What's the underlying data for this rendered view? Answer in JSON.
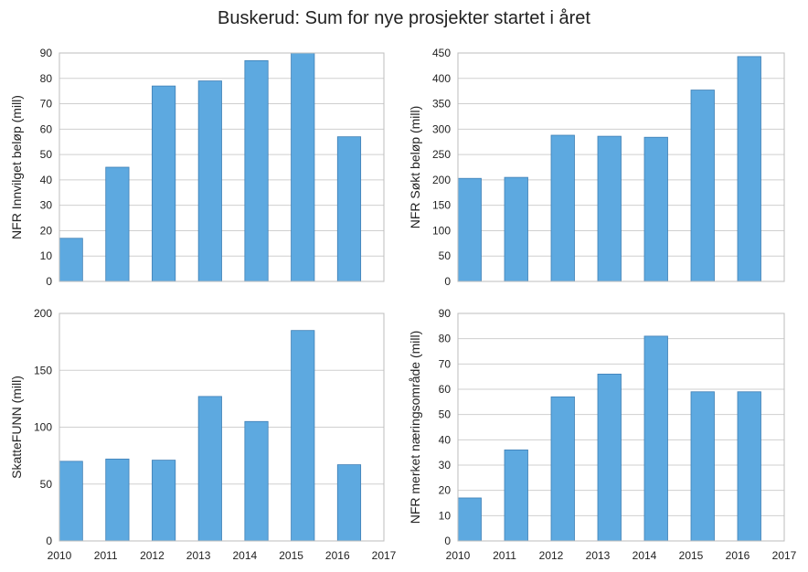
{
  "figure": {
    "title": "Buskerud: Sum for nye prosjekter startet i året",
    "bar_color": "#5DA9E0"
  },
  "chart_data": [
    {
      "type": "bar",
      "ylabel": "NFR Innvilget beløp (mill)",
      "x": [
        2010,
        2011,
        2012,
        2013,
        2014,
        2015,
        2016
      ],
      "values": [
        17,
        45,
        77,
        79,
        87,
        90,
        57
      ],
      "ylim": [
        0,
        90
      ],
      "xlim": [
        2010,
        2017
      ],
      "yticks": [
        0,
        10,
        20,
        30,
        40,
        50,
        60,
        70,
        80,
        90
      ],
      "xticks": [],
      "grid": true
    },
    {
      "type": "bar",
      "ylabel": "NFR Søkt beløp (mill)",
      "x": [
        2010,
        2011,
        2012,
        2013,
        2014,
        2015,
        2016
      ],
      "values": [
        203,
        205,
        288,
        286,
        284,
        377,
        443
      ],
      "ylim": [
        0,
        450
      ],
      "xlim": [
        2010,
        2017
      ],
      "yticks": [
        0,
        50,
        100,
        150,
        200,
        250,
        300,
        350,
        400,
        450
      ],
      "xticks": [],
      "grid": true
    },
    {
      "type": "bar",
      "ylabel": "SkatteFUNN (mill)",
      "x": [
        2010,
        2011,
        2012,
        2013,
        2014,
        2015,
        2016
      ],
      "values": [
        70,
        72,
        71,
        127,
        105,
        185,
        67
      ],
      "ylim": [
        0,
        200
      ],
      "xlim": [
        2010,
        2017
      ],
      "yticks": [
        0,
        50,
        100,
        150,
        200
      ],
      "xticks": [
        2010,
        2011,
        2012,
        2013,
        2014,
        2015,
        2016,
        2017
      ],
      "grid": true
    },
    {
      "type": "bar",
      "ylabel": "NFR merket næringsområde (mill)",
      "x": [
        2010,
        2011,
        2012,
        2013,
        2014,
        2015,
        2016
      ],
      "values": [
        17,
        36,
        57,
        66,
        81,
        59,
        59
      ],
      "ylim": [
        0,
        90
      ],
      "xlim": [
        2010,
        2017
      ],
      "yticks": [
        0,
        10,
        20,
        30,
        40,
        50,
        60,
        70,
        80,
        90
      ],
      "xticks": [
        2010,
        2011,
        2012,
        2013,
        2014,
        2015,
        2016,
        2017
      ],
      "grid": true
    }
  ]
}
